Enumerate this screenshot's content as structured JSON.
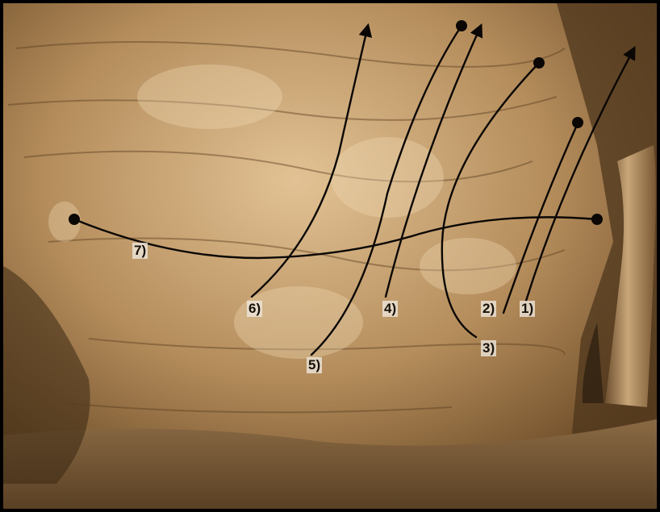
{
  "photo": {
    "subject": "Sepia photograph of a boulder wall with climbing route topo lines",
    "colors": {
      "sepia_light": "#d8b585",
      "sepia_mid": "#a07a4c",
      "sepia_dark": "#3a2812",
      "line": "#0a0704",
      "frame": "#000000"
    }
  },
  "routes": [
    {
      "id": "route-1",
      "label": "1)"
    },
    {
      "id": "route-2",
      "label": "2)"
    },
    {
      "id": "route-3",
      "label": "3)"
    },
    {
      "id": "route-4",
      "label": "4)"
    },
    {
      "id": "route-5",
      "label": "5)"
    },
    {
      "id": "route-6",
      "label": "6)"
    },
    {
      "id": "route-7",
      "label": "7)"
    }
  ]
}
